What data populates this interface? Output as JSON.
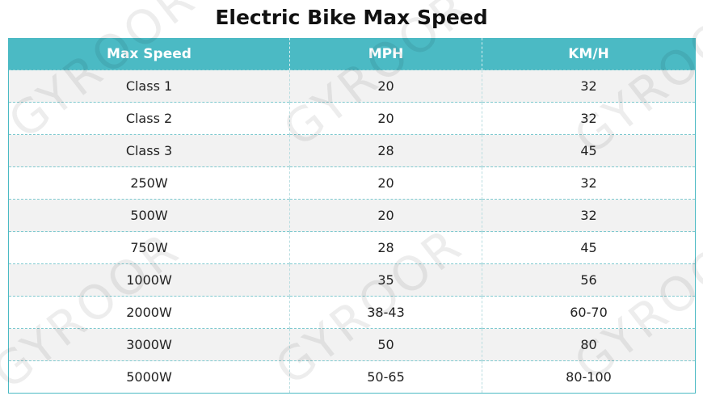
{
  "header": {
    "title": "Electric Bike Max Speed"
  },
  "watermark": "GYROOR",
  "table": {
    "columns": [
      "Max Speed",
      "MPH",
      "KM/H"
    ],
    "rows": [
      [
        "Class 1",
        "20",
        "32"
      ],
      [
        "Class 2",
        "20",
        "32"
      ],
      [
        "Class 3",
        "28",
        "45"
      ],
      [
        "250W",
        "20",
        "32"
      ],
      [
        "500W",
        "20",
        "32"
      ],
      [
        "750W",
        "28",
        "45"
      ],
      [
        "1000W",
        "35",
        "56"
      ],
      [
        "2000W",
        "38-43",
        "60-70"
      ],
      [
        "3000W",
        "50",
        "80"
      ],
      [
        "5000W",
        "50-65",
        "80-100"
      ]
    ]
  }
}
